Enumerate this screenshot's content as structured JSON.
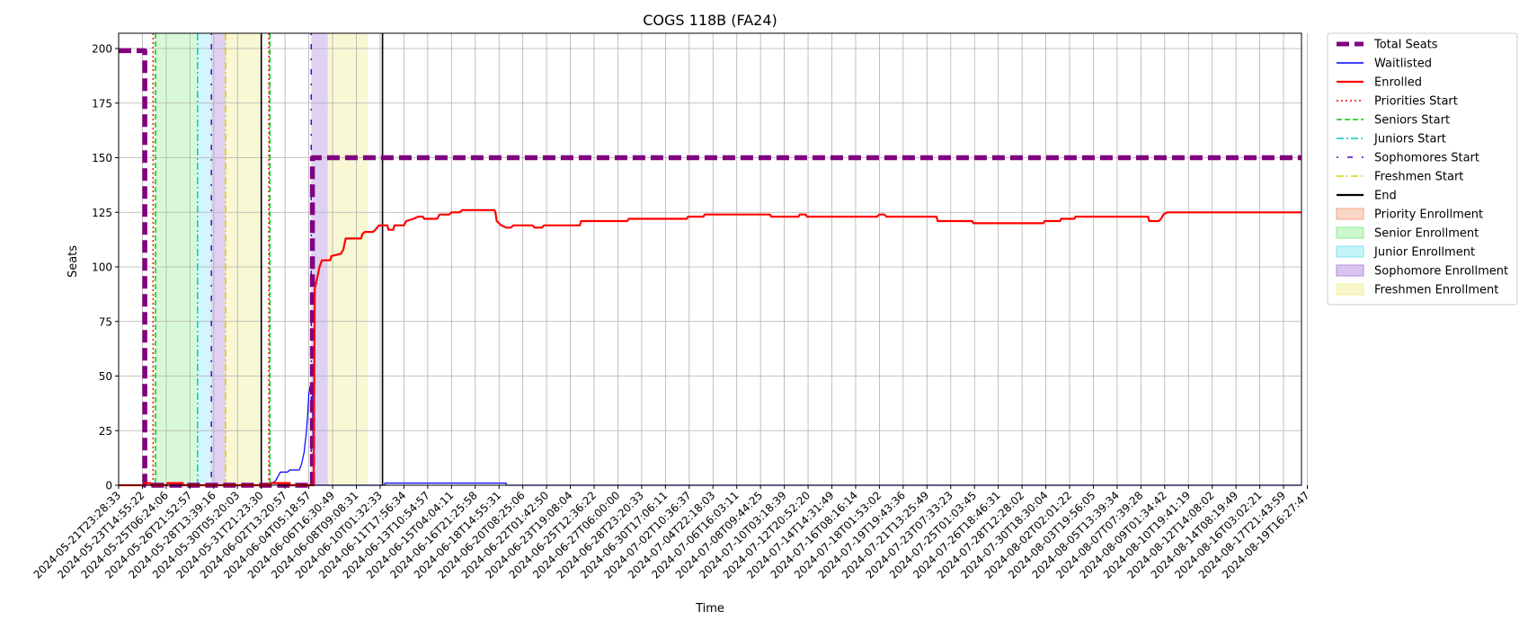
{
  "chart_data": {
    "type": "line",
    "title": "COGS 118B (FA24)",
    "xlabel": "Time",
    "ylabel": "Seats",
    "x_range": [
      "2024-05-21T23:28:33",
      "2024-08-20T16:00:00"
    ],
    "ylim": [
      0,
      207
    ],
    "y_ticks": [
      0,
      25,
      50,
      75,
      100,
      125,
      150,
      175,
      200
    ],
    "grid": true,
    "legend_position": "outside-right",
    "x_tick_labels": [
      "2024-05-21T23:28:33",
      "2024-05-23T14:55:22",
      "2024-05-25T06:24:06",
      "2024-05-26T21:52:57",
      "2024-05-28T13:39:16",
      "2024-05-30T05:20:03",
      "2024-05-31T21:23:30",
      "2024-06-02T13:20:57",
      "2024-06-04T05:18:57",
      "2024-06-06T16:30:49",
      "2024-06-08T09:08:31",
      "2024-06-10T01:32:33",
      "2024-06-11T17:56:34",
      "2024-06-13T10:54:57",
      "2024-06-15T04:04:11",
      "2024-06-16T21:25:58",
      "2024-06-18T14:55:31",
      "2024-06-20T08:25:06",
      "2024-06-22T01:42:50",
      "2024-06-23T19:08:04",
      "2024-06-25T12:36:22",
      "2024-06-27T06:00:00",
      "2024-06-28T23:20:33",
      "2024-06-30T17:06:11",
      "2024-07-02T10:36:37",
      "2024-07-04T22:18:03",
      "2024-07-06T16:03:11",
      "2024-07-08T09:44:25",
      "2024-07-10T03:18:39",
      "2024-07-12T20:52:20",
      "2024-07-14T14:31:49",
      "2024-07-16T08:16:14",
      "2024-07-18T01:53:02",
      "2024-07-19T19:43:36",
      "2024-07-21T13:25:49",
      "2024-07-23T07:33:23",
      "2024-07-25T01:03:45",
      "2024-07-26T18:46:31",
      "2024-07-28T12:28:02",
      "2024-07-30T18:30:04",
      "2024-08-02T02:01:22",
      "2024-08-03T19:56:05",
      "2024-08-05T13:39:34",
      "2024-08-07T07:39:28",
      "2024-08-09T01:34:42",
      "2024-08-10T19:41:19",
      "2024-08-12T14:08:02",
      "2024-08-14T08:19:49",
      "2024-08-16T03:02:21",
      "2024-08-17T21:43:59",
      "2024-08-19T16:27:47"
    ],
    "series": [
      {
        "name": "Total Seats",
        "color": "#800080",
        "style": "dashed-thick",
        "points": [
          [
            0,
            199
          ],
          [
            1.1,
            199
          ],
          [
            1.1,
            0
          ],
          [
            8.15,
            0
          ],
          [
            8.15,
            150
          ],
          [
            50.7,
            150
          ]
        ]
      },
      {
        "name": "Waitlisted",
        "color": "#0000ff",
        "style": "solid-thin",
        "points": [
          [
            0,
            0
          ],
          [
            6.3,
            0
          ],
          [
            6.6,
            2
          ],
          [
            6.8,
            6
          ],
          [
            7.1,
            6
          ],
          [
            7.2,
            7
          ],
          [
            7.6,
            7
          ],
          [
            7.7,
            10
          ],
          [
            7.8,
            15
          ],
          [
            7.9,
            25
          ],
          [
            7.95,
            32
          ],
          [
            8.0,
            42
          ],
          [
            8.05,
            45
          ],
          [
            8.1,
            46
          ],
          [
            8.15,
            46
          ],
          [
            8.2,
            0
          ],
          [
            11.2,
            0
          ],
          [
            11.2,
            1
          ],
          [
            16.3,
            1
          ],
          [
            16.3,
            0
          ],
          [
            50.7,
            0
          ]
        ]
      },
      {
        "name": "Enrolled",
        "color": "#ff0000",
        "style": "solid",
        "points": [
          [
            0,
            0
          ],
          [
            1.05,
            0
          ],
          [
            1.05,
            1
          ],
          [
            1.35,
            1
          ],
          [
            1.35,
            0
          ],
          [
            2.05,
            0
          ],
          [
            2.05,
            1
          ],
          [
            2.7,
            1
          ],
          [
            2.7,
            0
          ],
          [
            6.35,
            0
          ],
          [
            6.35,
            1
          ],
          [
            7.2,
            1
          ],
          [
            7.2,
            0
          ],
          [
            8.2,
            0
          ],
          [
            8.25,
            90
          ],
          [
            8.35,
            95
          ],
          [
            8.45,
            100
          ],
          [
            8.55,
            103
          ],
          [
            8.9,
            103
          ],
          [
            8.95,
            105
          ],
          [
            9.35,
            106
          ],
          [
            9.45,
            108
          ],
          [
            9.55,
            113
          ],
          [
            10.2,
            113
          ],
          [
            10.25,
            115
          ],
          [
            10.35,
            116
          ],
          [
            10.7,
            116
          ],
          [
            10.8,
            117
          ],
          [
            10.95,
            119
          ],
          [
            11.3,
            119
          ],
          [
            11.35,
            117
          ],
          [
            11.55,
            117
          ],
          [
            11.6,
            119
          ],
          [
            12.0,
            119
          ],
          [
            12.1,
            121
          ],
          [
            12.4,
            122
          ],
          [
            12.6,
            123
          ],
          [
            12.8,
            123
          ],
          [
            12.85,
            122
          ],
          [
            13.4,
            122
          ],
          [
            13.5,
            124
          ],
          [
            13.9,
            124
          ],
          [
            14.0,
            125
          ],
          [
            14.35,
            125
          ],
          [
            14.45,
            126
          ],
          [
            15.8,
            126
          ],
          [
            15.85,
            125
          ],
          [
            15.9,
            121
          ],
          [
            16.1,
            119
          ],
          [
            16.3,
            118
          ],
          [
            16.5,
            118
          ],
          [
            16.6,
            119
          ],
          [
            17.4,
            119
          ],
          [
            17.5,
            118
          ],
          [
            17.8,
            118
          ],
          [
            17.9,
            119
          ],
          [
            19.4,
            119
          ],
          [
            19.45,
            121
          ],
          [
            21.4,
            121
          ],
          [
            21.45,
            122
          ],
          [
            23.9,
            122
          ],
          [
            23.95,
            123
          ],
          [
            24.6,
            123
          ],
          [
            24.65,
            124
          ],
          [
            27.4,
            124
          ],
          [
            27.45,
            123
          ],
          [
            28.6,
            123
          ],
          [
            28.65,
            124
          ],
          [
            28.9,
            124
          ],
          [
            28.95,
            123
          ],
          [
            31.9,
            123
          ],
          [
            32.0,
            124
          ],
          [
            32.2,
            124
          ],
          [
            32.3,
            123
          ],
          [
            34.4,
            123
          ],
          [
            34.45,
            121
          ],
          [
            35.9,
            121
          ],
          [
            35.95,
            120
          ],
          [
            38.9,
            120
          ],
          [
            38.95,
            121
          ],
          [
            39.6,
            121
          ],
          [
            39.65,
            122
          ],
          [
            40.2,
            122
          ],
          [
            40.25,
            123
          ],
          [
            43.3,
            123
          ],
          [
            43.35,
            121
          ],
          [
            43.75,
            121
          ],
          [
            43.85,
            122
          ],
          [
            43.95,
            124
          ],
          [
            44.1,
            125
          ],
          [
            50.7,
            125
          ]
        ]
      },
      {
        "name": "Priorities Start",
        "color": "#ff0000",
        "style": "dotted",
        "x": 1.45
      },
      {
        "name": "Seniors Start",
        "color": "#00cc00",
        "style": "dashed",
        "x": 1.55
      },
      {
        "name": "Juniors Start",
        "color": "#00cccc",
        "style": "dashdot",
        "x": 3.32
      },
      {
        "name": "Sophomores Start",
        "color": "#5500cc",
        "style": "loose-dashdot",
        "x": 3.9
      },
      {
        "name": "Freshmen Start",
        "color": "#e0d000",
        "style": "dashdot",
        "x": 4.5
      },
      {
        "name": "End",
        "color": "#000000",
        "style": "solid",
        "x": [
          6.0,
          11.1
        ]
      }
    ],
    "extra_marks": [
      {
        "series": "Priorities Start",
        "x": 6.32
      },
      {
        "series": "Seniors Start",
        "x": 6.36
      },
      {
        "series": "Sophomores Start",
        "x": 8.1
      }
    ],
    "spans": [
      {
        "name": "Priority Enrollment",
        "fill": "#f4a582",
        "opacity": 0.35,
        "ranges": []
      },
      {
        "name": "Senior Enrollment",
        "fill": "#90ee90",
        "opacity": 0.35,
        "ranges": [
          [
            1.55,
            3.32
          ]
        ]
      },
      {
        "name": "Junior Enrollment",
        "fill": "#7fe6ef",
        "opacity": 0.35,
        "ranges": [
          [
            3.32,
            3.9
          ]
        ]
      },
      {
        "name": "Sophomore Enrollment",
        "fill": "#b28be0",
        "opacity": 0.4,
        "ranges": [
          [
            3.9,
            4.5
          ],
          [
            8.1,
            8.8
          ]
        ]
      },
      {
        "name": "Freshmen Enrollment",
        "fill": "#f0f0a0",
        "opacity": 0.45,
        "ranges": [
          [
            4.5,
            6.0
          ],
          [
            8.8,
            10.5
          ]
        ]
      }
    ]
  }
}
